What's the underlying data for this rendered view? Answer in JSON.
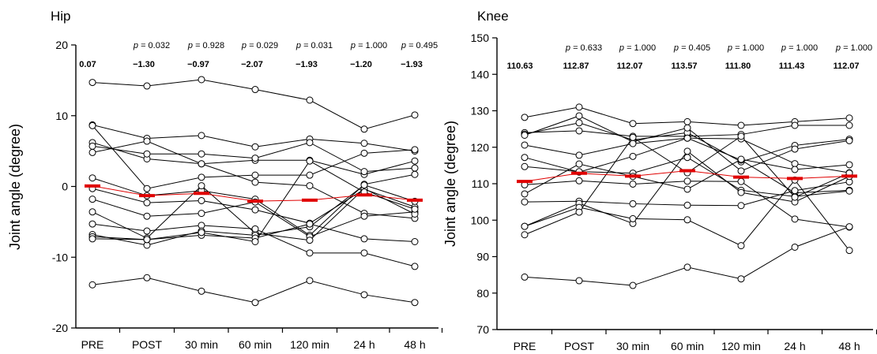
{
  "colors": {
    "individual": "#000000",
    "mean": "#e00000"
  },
  "chart_data": [
    {
      "type": "line",
      "title": "Hip",
      "ylabel": "Joint angle (degree)",
      "ylim": [
        -20,
        20
      ],
      "yticks": [
        -20,
        -10,
        0,
        10,
        20
      ],
      "categories": [
        "PRE",
        "POST",
        "30 min",
        "60 min",
        "120 min",
        "24 h",
        "48 h"
      ],
      "p_values": [
        "",
        "p = 0.032",
        "p = 0.928",
        "p = 0.029",
        "p = 0.031",
        "p = 1.000",
        "p = 0.495"
      ],
      "mean_labels": [
        "0.07",
        "−1.30",
        "−0.97",
        "−2.07",
        "−1.93",
        "−1.20",
        "−1.93"
      ],
      "mean": [
        0.07,
        -1.3,
        -0.97,
        -2.07,
        -1.93,
        -1.2,
        -1.93
      ],
      "series": [
        {
          "values": [
            14.7,
            14.2,
            15.1,
            13.7,
            12.2,
            8.1,
            10.1
          ]
        },
        {
          "values": [
            8.7,
            6.8,
            7.2,
            5.6,
            6.7,
            6.1,
            5.0
          ]
        },
        {
          "values": [
            8.6,
            -0.3,
            1.3,
            1.6,
            1.6,
            4.7,
            5.2
          ]
        },
        {
          "values": [
            6.2,
            3.9,
            3.2,
            3.7,
            3.7,
            1.7,
            3.6
          ]
        },
        {
          "values": [
            5.7,
            4.6,
            4.6,
            4.0,
            6.2,
            2.1,
            2.6
          ]
        },
        {
          "values": [
            4.8,
            6.4,
            3.2,
            0.6,
            0.1,
            -3.8,
            -4.5
          ]
        },
        {
          "values": [
            1.2,
            -1.3,
            -0.6,
            -1.8,
            -6.9,
            0.3,
            1.7
          ]
        },
        {
          "values": [
            -0.3,
            -2.3,
            -2.0,
            -3.3,
            -5.2,
            -0.4,
            -2.9
          ]
        },
        {
          "values": [
            -1.8,
            -4.2,
            -3.8,
            -2.2,
            -7.1,
            -4.2,
            -3.6
          ]
        },
        {
          "values": [
            -3.6,
            -7.3,
            0.1,
            -6.6,
            -7.6,
            -0.3,
            -3.9
          ]
        },
        {
          "values": [
            -5.3,
            -6.3,
            -5.5,
            -6.0,
            -9.4,
            -9.4,
            -11.3
          ]
        },
        {
          "values": [
            -6.8,
            -8.3,
            -6.3,
            -6.9,
            -5.7,
            0.2,
            -2.1
          ]
        },
        {
          "values": [
            -7.1,
            -7.5,
            -6.9,
            -7.3,
            -5.3,
            -7.4,
            -7.8
          ]
        },
        {
          "values": [
            -7.4,
            -7.5,
            -6.5,
            -7.8,
            3.6,
            -0.8,
            -3.2
          ]
        },
        {
          "values": [
            -13.9,
            -12.9,
            -14.8,
            -16.4,
            -13.3,
            -15.3,
            -16.4
          ]
        }
      ]
    },
    {
      "type": "line",
      "title": "Knee",
      "ylabel": "Joint angle (degree)",
      "ylim": [
        70,
        150
      ],
      "yticks": [
        70,
        80,
        90,
        100,
        110,
        120,
        130,
        140,
        150
      ],
      "categories": [
        "PRE",
        "POST",
        "30 min",
        "60 min",
        "120 min",
        "24 h",
        "48 h"
      ],
      "p_values": [
        "",
        "p = 0.633",
        "p = 1.000",
        "p = 0.405",
        "p = 1.000",
        "p = 1.000",
        "p = 1.000"
      ],
      "mean_labels": [
        "110.63",
        "112.87",
        "112.07",
        "113.57",
        "111.80",
        "111.43",
        "112.07"
      ],
      "mean": [
        110.63,
        112.87,
        112.07,
        113.57,
        111.8,
        111.43,
        112.07
      ],
      "series": [
        {
          "values": [
            128.2,
            131.0,
            126.5,
            127.0,
            126.0,
            127.0,
            128.0
          ]
        },
        {
          "values": [
            124.0,
            124.5,
            123.0,
            123.0,
            123.5,
            126.0,
            126.0
          ]
        },
        {
          "values": [
            123.6,
            126.7,
            122.0,
            124.0,
            116.0,
            120.5,
            122.2
          ]
        },
        {
          "values": [
            123.3,
            128.6,
            121.5,
            125.3,
            113.5,
            119.5,
            121.8
          ]
        },
        {
          "values": [
            120.6,
            117.8,
            121.0,
            122.5,
            122.3,
            115.5,
            113.0
          ]
        },
        {
          "values": [
            117.2,
            113.2,
            117.5,
            122.5,
            116.5,
            107.5,
            108.2
          ]
        },
        {
          "values": [
            114.7,
            113.3,
            112.9,
            117.2,
            108.2,
            106.5,
            108.0
          ]
        },
        {
          "values": [
            109.7,
            110.8,
            109.9,
            110.7,
            110.6,
            100.3,
            98.1
          ]
        },
        {
          "values": [
            107.2,
            115.4,
            112.0,
            108.5,
            116.7,
            113.9,
            115.2
          ]
        },
        {
          "values": [
            105.0,
            105.2,
            104.5,
            104.1,
            104.0,
            108.1,
            110.5
          ]
        },
        {
          "values": [
            98.3,
            104.6,
            99.1,
            118.9,
            107.6,
            105.0,
            112.0
          ]
        },
        {
          "values": [
            98.3,
            103.5,
            100.4,
            100.1,
            93.0,
            111.0,
            91.7
          ]
        },
        {
          "values": [
            96.0,
            102.2,
            122.7,
            113.0,
            123.0,
            106.3,
            112.9
          ]
        },
        {
          "values": [
            84.4,
            83.4,
            82.1,
            87.1,
            83.9,
            92.6,
            98.2
          ]
        }
      ]
    }
  ]
}
